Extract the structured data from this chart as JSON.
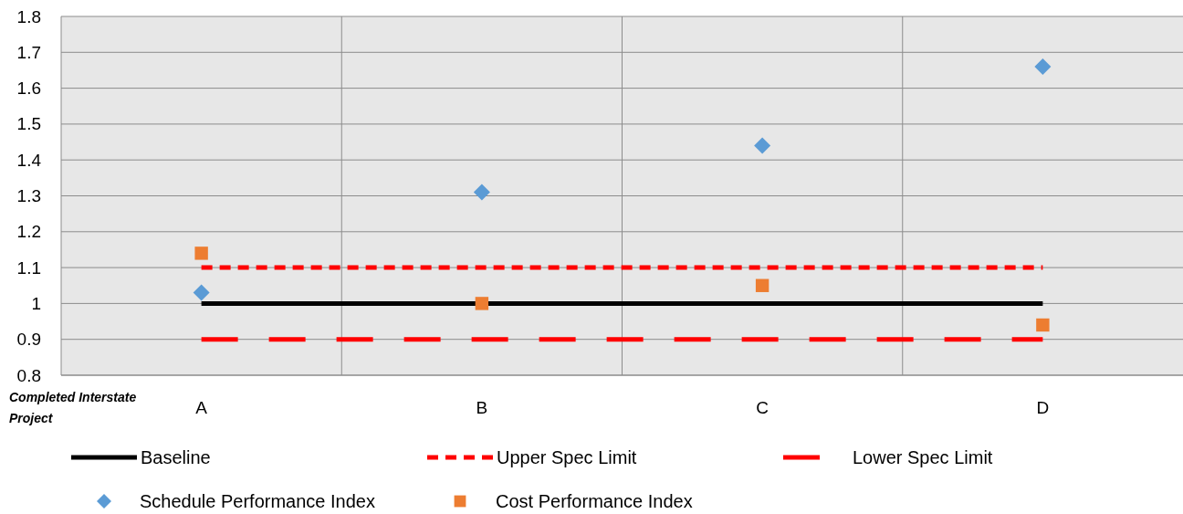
{
  "chart_data": {
    "type": "scatter",
    "xlabel": "Completed Interstate Project",
    "categories": [
      "A",
      "B",
      "C",
      "D"
    ],
    "ylim": [
      0.8,
      1.8
    ],
    "yticks": [
      0.8,
      0.9,
      1,
      1.1,
      1.2,
      1.3,
      1.4,
      1.5,
      1.6,
      1.7,
      1.8
    ],
    "grid": true,
    "legend": "bottom",
    "series": [
      {
        "name": "Baseline",
        "type": "line",
        "color": "#000000",
        "line_style": "solid",
        "marker": "none",
        "values": [
          1,
          1,
          1,
          1
        ]
      },
      {
        "name": "Upper Spec Limit",
        "type": "line",
        "color": "#ff0000",
        "line_style": "dotted",
        "marker": "none",
        "values": [
          1.1,
          1.1,
          1.1,
          1.1
        ]
      },
      {
        "name": "Lower Spec Limit",
        "type": "line",
        "color": "#ff0000",
        "line_style": "dashed",
        "marker": "none",
        "values": [
          0.9,
          0.9,
          0.9,
          0.9
        ]
      },
      {
        "name": "Schedule Performance Index",
        "color": "#5b9bd5",
        "marker": "diamond",
        "values": [
          1.03,
          1.31,
          1.44,
          1.66
        ]
      },
      {
        "name": "Cost Performance Index",
        "color": "#ed7d31",
        "marker": "square",
        "values": [
          1.14,
          1.0,
          1.05,
          0.94
        ]
      }
    ]
  }
}
